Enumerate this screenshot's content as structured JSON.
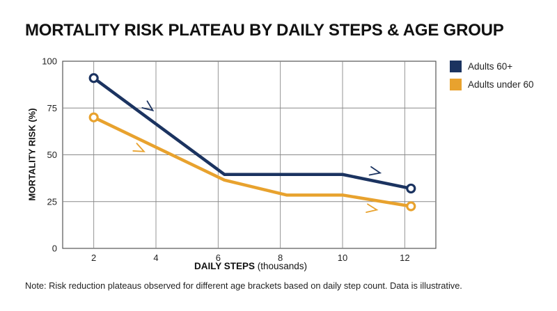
{
  "chart_data": {
    "type": "line",
    "title": "MORTALITY RISK PLATEAU BY DAILY STEPS & AGE GROUP",
    "xlabel_bold": "DAILY STEPS",
    "xlabel_rest": " (thousands)",
    "ylabel": "MORTALITY RISK (%)",
    "xlim": [
      1,
      13
    ],
    "ylim": [
      0,
      100
    ],
    "x_ticks": [
      2,
      4,
      6,
      8,
      10,
      12
    ],
    "y_ticks": [
      0,
      25,
      50,
      75,
      100
    ],
    "grid": true,
    "legend_position": "top-right",
    "series": [
      {
        "name": "Adults 60+",
        "color": "#1b3360",
        "points": [
          [
            2,
            91
          ],
          [
            6.2,
            39.5
          ],
          [
            10,
            39.5
          ],
          [
            12.2,
            32
          ]
        ]
      },
      {
        "name": "Adults under 60",
        "color": "#e8a22e",
        "points": [
          [
            2,
            70
          ],
          [
            6.2,
            36.5
          ],
          [
            8.2,
            28.5
          ],
          [
            10,
            28.5
          ],
          [
            12.2,
            22.5
          ]
        ]
      }
    ]
  },
  "note": "Note: Risk reduction plateaus observed for different age brackets based on daily step count. Data is illustrative."
}
